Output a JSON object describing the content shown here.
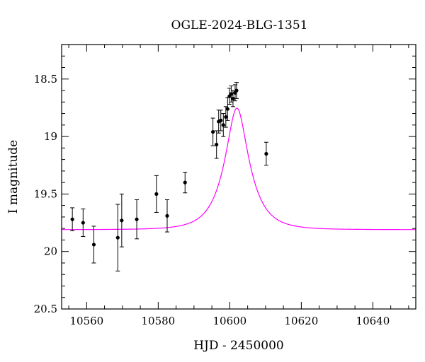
{
  "chart_data": {
    "type": "scatter",
    "title": "OGLE-2024-BLG-1351",
    "xlabel": "HJD - 2450000",
    "ylabel": "I magnitude",
    "xlim": [
      10553,
      10652
    ],
    "ylim": [
      20.5,
      18.2
    ],
    "y_inverted": true,
    "grid": false,
    "legend": "none",
    "x_major_ticks": [
      10560,
      10580,
      10600,
      10620,
      10640
    ],
    "x_tick_labels": [
      "10560",
      "10580",
      "10600",
      "10620",
      "10640"
    ],
    "y_major_ticks": [
      18.5,
      19,
      19.5,
      20,
      20.5
    ],
    "y_tick_labels": [
      "18.5",
      "19",
      "19.5",
      "20",
      "20.5"
    ],
    "colors": {
      "points": "#000000",
      "model": "#ff00ff"
    },
    "model": {
      "name": "",
      "t0": 10602,
      "tE": 6.5,
      "u0": 0.4,
      "baseline_mag": 19.81,
      "x_values": [
        10553,
        10570,
        10580,
        10590,
        10595,
        10598,
        10600,
        10602,
        10604,
        10606,
        10610,
        10615,
        10620,
        10630,
        10640,
        10652
      ],
      "y_values": [
        19.79,
        19.73,
        19.62,
        19.33,
        19.07,
        18.84,
        18.68,
        18.61,
        18.67,
        18.83,
        19.2,
        19.51,
        19.64,
        19.74,
        19.77,
        19.79
      ]
    },
    "series": [
      {
        "x": [
          10556,
          10559,
          10562,
          10568.7,
          10569.8,
          10574,
          10579.5,
          10582.5,
          10587.5,
          10595.3,
          10596.3,
          10596.9,
          10597.5,
          10598.2,
          10598.9,
          10599.4,
          10599.9,
          10600.4,
          10600.9,
          10601.5,
          10601.9,
          10610.2
        ],
        "y": [
          19.72,
          19.75,
          19.94,
          19.88,
          19.73,
          19.72,
          19.5,
          19.69,
          19.4,
          18.96,
          19.07,
          18.87,
          18.86,
          18.9,
          18.83,
          18.76,
          18.65,
          18.63,
          18.67,
          18.62,
          18.6,
          19.15
        ],
        "yerr": [
          0.1,
          0.12,
          0.16,
          0.29,
          0.23,
          0.17,
          0.16,
          0.14,
          0.09,
          0.12,
          0.12,
          0.1,
          0.09,
          0.1,
          0.09,
          0.1,
          0.07,
          0.07,
          0.07,
          0.07,
          0.07,
          0.1
        ]
      }
    ]
  }
}
